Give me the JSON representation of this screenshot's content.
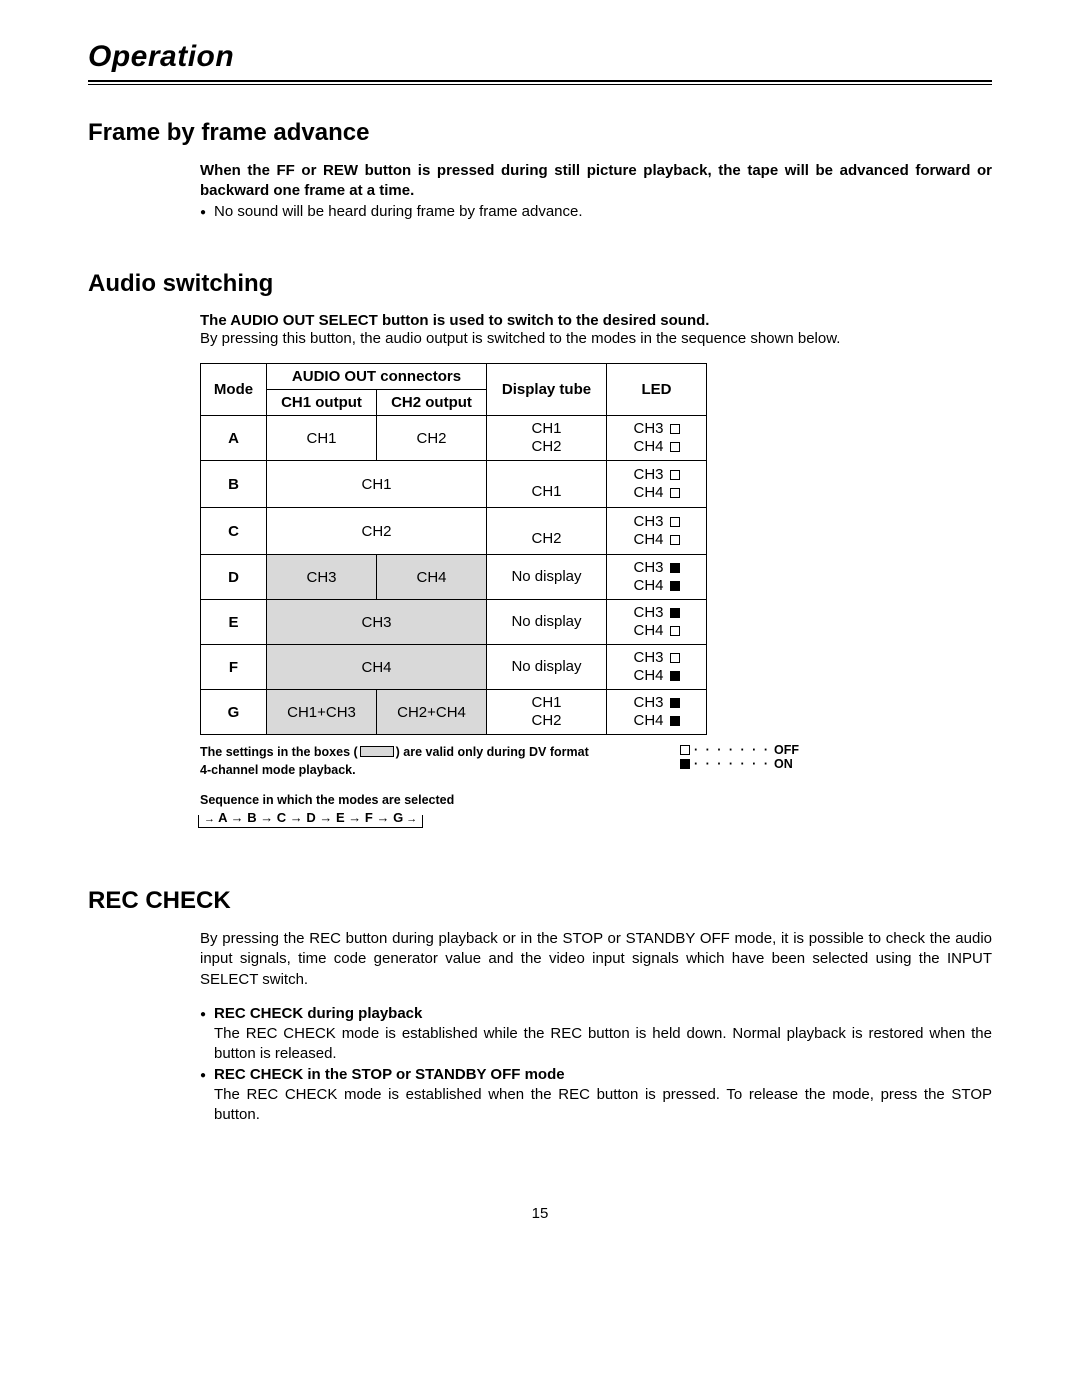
{
  "page": {
    "chapter_title": "Operation",
    "page_number": "15"
  },
  "frame": {
    "heading": "Frame by frame advance",
    "bold_text": "When the FF or REW button is pressed during still picture playback, the tape will be advanced forward or backward one frame at a time.",
    "bullet": "No sound will be heard during frame by frame advance."
  },
  "audio": {
    "heading": "Audio switching",
    "bold_text": "The AUDIO OUT SELECT button is used to switch to the desired sound.",
    "plain_text": "By pressing this button, the audio output is switched to the modes in the sequence shown below.",
    "table": {
      "head": {
        "mode": "Mode",
        "connectors": "AUDIO OUT connectors",
        "ch1": "CH1 output",
        "ch2": "CH2 output",
        "display": "Display tube",
        "led": "LED"
      },
      "rows": [
        {
          "mode": "A",
          "ch1": "CH1",
          "ch2": "CH2",
          "ch_merged": false,
          "display": "CH1\nCH2",
          "led": [
            {
              "label": "CH3",
              "on": false
            },
            {
              "label": "CH4",
              "on": false
            }
          ],
          "shaded": false
        },
        {
          "mode": "B",
          "ch_merged": true,
          "ch_text": "CH1",
          "display": "CH1",
          "led": [
            {
              "label": "CH3",
              "on": false
            },
            {
              "label": "CH4",
              "on": false
            }
          ],
          "shaded": false,
          "display_valign": "bottom"
        },
        {
          "mode": "C",
          "ch_merged": true,
          "ch_text": "CH2",
          "display": "CH2",
          "led": [
            {
              "label": "CH3",
              "on": false
            },
            {
              "label": "CH4",
              "on": false
            }
          ],
          "shaded": false,
          "display_valign": "bottom"
        },
        {
          "mode": "D",
          "ch1": "CH3",
          "ch2": "CH4",
          "ch_merged": false,
          "display": "No display",
          "led": [
            {
              "label": "CH3",
              "on": true
            },
            {
              "label": "CH4",
              "on": true
            }
          ],
          "shaded": true
        },
        {
          "mode": "E",
          "ch_merged": true,
          "ch_text": "CH3",
          "display": "No display",
          "led": [
            {
              "label": "CH3",
              "on": true
            },
            {
              "label": "CH4",
              "on": false
            }
          ],
          "shaded": true
        },
        {
          "mode": "F",
          "ch_merged": true,
          "ch_text": "CH4",
          "display": "No display",
          "led": [
            {
              "label": "CH3",
              "on": false
            },
            {
              "label": "CH4",
              "on": true
            }
          ],
          "shaded": true
        },
        {
          "mode": "G",
          "ch1": "CH1+CH3",
          "ch2": "CH2+CH4",
          "ch_merged": false,
          "display": "CH1\nCH2",
          "led": [
            {
              "label": "CH3",
              "on": true
            },
            {
              "label": "CH4",
              "on": true
            }
          ],
          "shaded": true
        }
      ]
    },
    "settings_note_a": "The settings in the boxes (",
    "settings_note_b": ") are valid only during DV format",
    "settings_note_c": "4-channel mode playback.",
    "legend_off": "OFF",
    "legend_on": "ON",
    "sequence_title": "Sequence in which the modes are selected",
    "sequence_text": "A → B → C → D → E → F → G"
  },
  "rec": {
    "heading": "REC CHECK",
    "intro": "By pressing the REC button during playback or in the STOP or STANDBY OFF mode, it is possible to check the audio input signals, time code generator value and the video input signals which have been selected using the INPUT SELECT switch.",
    "b1_title": "REC CHECK during playback",
    "b1_text": "The REC CHECK mode is established while the REC button is held down.  Normal playback is restored when the button is released.",
    "b2_title": "REC CHECK in the STOP or STANDBY OFF mode",
    "b2_text": "The REC CHECK mode is established when the REC button is pressed.  To release the mode, press the STOP button."
  }
}
